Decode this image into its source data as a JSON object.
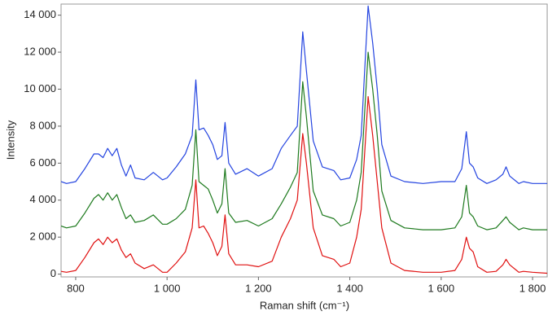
{
  "chart_data": {
    "type": "line",
    "x_label": "Raman shift (cm⁻¹)",
    "y_label": "Intensity",
    "x": [
      768,
      780,
      800,
      820,
      840,
      850,
      860,
      870,
      880,
      890,
      900,
      910,
      920,
      930,
      950,
      970,
      990,
      1000,
      1020,
      1040,
      1055,
      1063,
      1070,
      1080,
      1090,
      1100,
      1110,
      1120,
      1127,
      1135,
      1150,
      1175,
      1200,
      1230,
      1250,
      1270,
      1285,
      1297,
      1305,
      1320,
      1340,
      1365,
      1380,
      1400,
      1415,
      1425,
      1440,
      1450,
      1460,
      1470,
      1490,
      1520,
      1560,
      1600,
      1630,
      1645,
      1655,
      1662,
      1670,
      1680,
      1700,
      1720,
      1735,
      1742,
      1750,
      1770,
      1780,
      1800,
      1832
    ],
    "series": [
      {
        "color": "#e01010",
        "values": [
          150,
          100,
          200,
          900,
          1700,
          1900,
          1600,
          2000,
          1700,
          1900,
          1300,
          900,
          1100,
          600,
          300,
          500,
          100,
          100,
          600,
          1200,
          2500,
          5100,
          2500,
          2600,
          2200,
          1700,
          1000,
          1500,
          3200,
          1100,
          500,
          500,
          400,
          700,
          2000,
          3000,
          4000,
          7600,
          6000,
          2500,
          1000,
          800,
          400,
          600,
          2000,
          3500,
          9600,
          7500,
          5000,
          2500,
          600,
          200,
          100,
          100,
          200,
          800,
          2000,
          1400,
          1200,
          400,
          100,
          150,
          500,
          800,
          500,
          100,
          150,
          100,
          50
        ]
      },
      {
        "color": "#1e7a1e",
        "values": [
          2600,
          2500,
          2600,
          3300,
          4100,
          4300,
          4000,
          4400,
          4000,
          4300,
          3600,
          3000,
          3200,
          2800,
          2900,
          3200,
          2700,
          2700,
          3000,
          3500,
          4800,
          7800,
          5000,
          4800,
          4600,
          4000,
          3300,
          3800,
          5700,
          3300,
          2800,
          2900,
          2600,
          3000,
          3800,
          4700,
          5500,
          10400,
          8500,
          4500,
          3200,
          3000,
          2600,
          2800,
          4000,
          5500,
          12000,
          10000,
          7500,
          4500,
          2900,
          2500,
          2400,
          2400,
          2500,
          3100,
          4800,
          3300,
          3100,
          2600,
          2400,
          2500,
          2900,
          3100,
          2800,
          2400,
          2500,
          2400,
          2400
        ]
      },
      {
        "color": "#2444e0",
        "values": [
          5000,
          4900,
          5000,
          5700,
          6500,
          6500,
          6300,
          6800,
          6400,
          6800,
          5900,
          5300,
          5900,
          5200,
          5100,
          5500,
          5100,
          5200,
          5800,
          6500,
          7500,
          10500,
          7800,
          7900,
          7500,
          7000,
          6200,
          6400,
          8200,
          6000,
          5400,
          5700,
          5300,
          5700,
          6800,
          7500,
          8000,
          13100,
          11000,
          7200,
          5800,
          5600,
          5100,
          5200,
          6200,
          7500,
          14500,
          12500,
          10000,
          7000,
          5300,
          5000,
          4900,
          5000,
          5000,
          5700,
          7700,
          6000,
          5800,
          5200,
          4900,
          5100,
          5400,
          5800,
          5300,
          4900,
          5000,
          4900,
          4900
        ]
      }
    ],
    "xlim": [
      768,
      1832
    ],
    "xticks": [
      800,
      {
        "value": 1000,
        "label": "1 000"
      },
      {
        "value": 1200,
        "label": "1 200"
      },
      {
        "value": 1400,
        "label": "1 400"
      },
      {
        "value": 1600,
        "label": "1 600"
      },
      {
        "value": 1800,
        "label": "1 800"
      }
    ],
    "ylim": [
      -150,
      14600
    ],
    "yticks": [
      0,
      {
        "value": 2000,
        "label": "2 000"
      },
      {
        "value": 4000,
        "label": "4 000"
      },
      {
        "value": 6000,
        "label": "6 000"
      },
      {
        "value": 8000,
        "label": "8 000"
      },
      {
        "value": 10000,
        "label": "10 000"
      },
      {
        "value": 12000,
        "label": "12 000"
      },
      {
        "value": 14000,
        "label": "14 000"
      }
    ]
  }
}
